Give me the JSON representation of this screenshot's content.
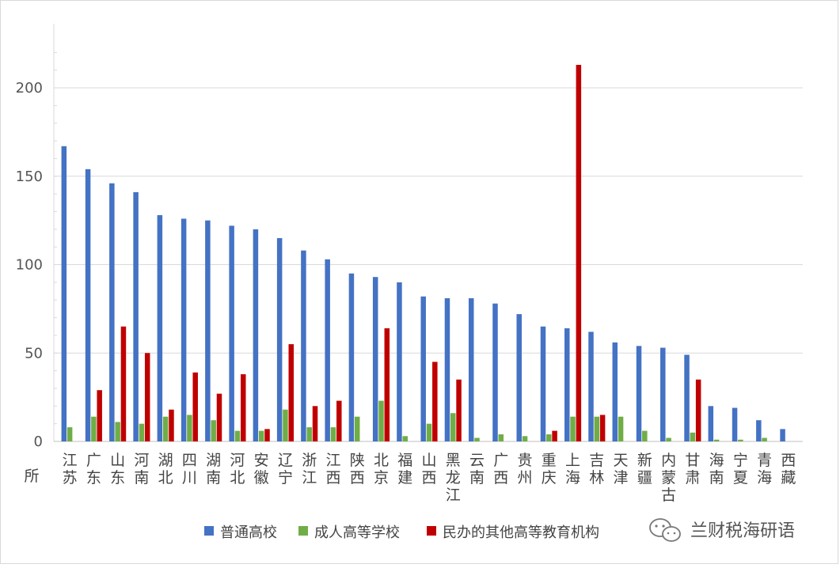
{
  "chart_data": {
    "type": "bar",
    "ylabel": "所",
    "ylim": [
      0,
      230
    ],
    "yticks": [
      0,
      50,
      100,
      150,
      200
    ],
    "grid": true,
    "legend_position": "bottom",
    "categories": [
      "江苏",
      "广东",
      "山东",
      "河南",
      "湖北",
      "四川",
      "湖南",
      "河北",
      "安徽",
      "辽宁",
      "浙江",
      "江西",
      "陕西",
      "北京",
      "福建",
      "山西",
      "黑龙江",
      "云南",
      "广西",
      "贵州",
      "重庆",
      "上海",
      "吉林",
      "天津",
      "新疆",
      "内蒙古",
      "甘肃",
      "海南",
      "宁夏",
      "青海",
      "西藏"
    ],
    "series": [
      {
        "name": "普通高校",
        "color": "#4472C4",
        "values": [
          167,
          154,
          146,
          141,
          128,
          126,
          125,
          122,
          120,
          115,
          108,
          103,
          95,
          93,
          90,
          82,
          81,
          81,
          78,
          72,
          65,
          64,
          62,
          56,
          54,
          53,
          49,
          20,
          19,
          12,
          7
        ]
      },
      {
        "name": "成人高等学校",
        "color": "#70AD47",
        "values": [
          8,
          14,
          11,
          10,
          14,
          15,
          12,
          6,
          6,
          18,
          8,
          8,
          14,
          23,
          3,
          10,
          16,
          2,
          4,
          3,
          4,
          14,
          14,
          14,
          6,
          2,
          5,
          1,
          1,
          2,
          0
        ]
      },
      {
        "name": "民办的其他高等教育机构",
        "color": "#C00000",
        "values": [
          0,
          29,
          65,
          50,
          18,
          39,
          27,
          38,
          7,
          55,
          20,
          23,
          0,
          64,
          0,
          45,
          35,
          0,
          0,
          0,
          6,
          213,
          15,
          0,
          0,
          0,
          35,
          0,
          0,
          0,
          0
        ]
      }
    ]
  },
  "watermark": {
    "text": "兰财税海研语",
    "icon": "wechat-icon"
  }
}
